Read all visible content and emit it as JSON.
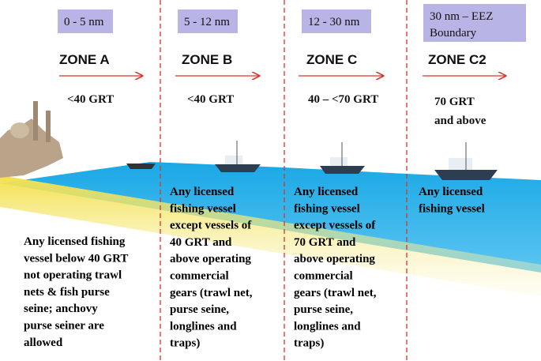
{
  "zones": [
    {
      "range": [
        "0 - 5 nm"
      ],
      "name": "ZONE A",
      "grt": [
        "<40 GRT"
      ],
      "description": [
        "Any licensed fishing",
        "vessel below 40 GRT",
        "not operating trawl",
        "nets & fish purse",
        "seine; anchovy",
        "purse seiner are",
        "allowed"
      ]
    },
    {
      "range": [
        "5 - 12 nm"
      ],
      "name": "ZONE B",
      "grt": [
        "<40 GRT"
      ],
      "description": [
        "Any licensed",
        "fishing vessel",
        "except vessels of",
        "40 GRT and",
        "above operating",
        "commercial",
        "gears (trawl net,",
        "purse seine,",
        "longlines and",
        "traps)"
      ]
    },
    {
      "range": [
        "12 - 30 nm"
      ],
      "name": "ZONE C",
      "grt": [
        "40 – <70 GRT"
      ],
      "description": [
        "Any licensed",
        "fishing vessel",
        "except vessels of",
        "70 GRT and",
        "above operating",
        "commercial",
        "gears (trawl net,",
        "purse seine,",
        "longlines and",
        "traps)"
      ]
    },
    {
      "range": [
        "30 nm – EEZ",
        "Boundary"
      ],
      "name": "ZONE C2",
      "grt": [
        "70 GRT",
        "and above"
      ],
      "description": [
        "Any licensed",
        "fishing vessel"
      ]
    }
  ]
}
